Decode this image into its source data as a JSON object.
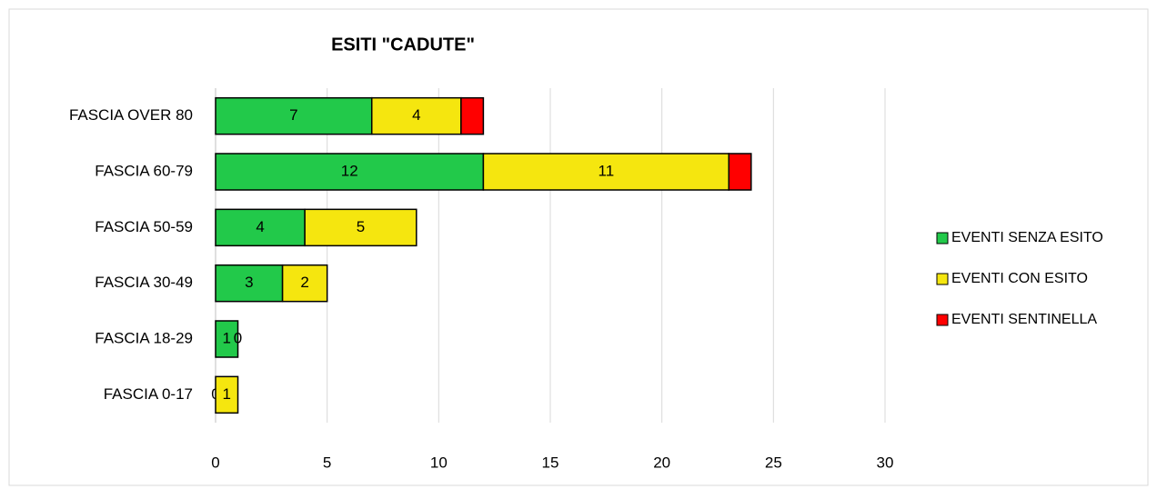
{
  "chart_data": {
    "type": "bar",
    "orientation": "horizontal",
    "stacked": true,
    "title": "ESITI \"CADUTE\"",
    "categories": [
      "FASCIA OVER 80",
      "FASCIA 60-79",
      "FASCIA 50-59",
      "FASCIA 30-49",
      "FASCIA 18-29",
      "FASCIA 0-17"
    ],
    "series": [
      {
        "name": "EVENTI SENZA ESITO",
        "color": "#22c94a",
        "values": [
          7,
          12,
          4,
          3,
          1,
          0
        ],
        "show_labels": true
      },
      {
        "name": "EVENTI CON ESITO",
        "color": "#f5e60f",
        "values": [
          4,
          11,
          5,
          2,
          0,
          1
        ],
        "show_labels": true
      },
      {
        "name": "EVENTI SENTINELLA",
        "color": "#ff0000",
        "values": [
          1,
          1,
          0,
          0,
          0,
          0
        ],
        "show_labels": false
      }
    ],
    "xlim": [
      0,
      30
    ],
    "xticks": [
      0,
      5,
      10,
      15,
      20,
      25,
      30
    ],
    "grid": true,
    "legend": "right"
  }
}
